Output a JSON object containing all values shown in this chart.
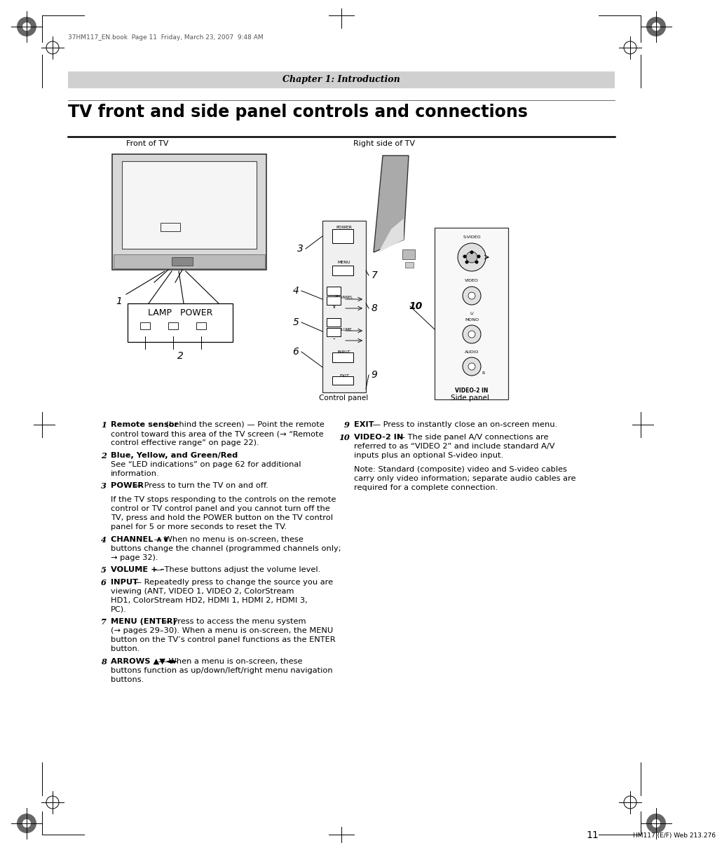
{
  "page_header_text": "37HM117_EN.book  Page 11  Friday, March 23, 2007  9:48 AM",
  "chapter_label": "Chapter 1: Introduction",
  "title": "TV front and side panel controls and connections",
  "front_label": "Front of TV",
  "right_label": "Right side of TV",
  "control_panel_label": "Control panel",
  "side_panel_label": "Side panel",
  "bg_color": "#ffffff",
  "footer_page_num": "11",
  "footer_text": "HM117 (E/F) Web 213.276",
  "items_left": [
    [
      "1",
      "Remote sensor",
      " (behind the screen) — Point the remote\ncontrol toward this area of the TV screen (→ “Remote\ncontrol effective range” on page 22)."
    ],
    [
      "2",
      "Blue, Yellow, and Green/Red",
      "\nSee “LED indications” on page 62 for additional\ninformation."
    ],
    [
      "3",
      "POWER",
      " — Press to turn the TV on and off.\n\nIf the TV stops responding to the controls on the remote\ncontrol or TV control panel and you cannot turn off the\nTV, press and hold the POWER button on the TV control\npanel for 5 or more seconds to reset the TV."
    ],
    [
      "4",
      "CHANNEL ∧∨",
      " — When no menu is on-screen, these\nbuttons change the channel (programmed channels only;\n→ page 32)."
    ],
    [
      "5",
      "VOLUME + –",
      " — These buttons adjust the volume level."
    ],
    [
      "6",
      "INPUT",
      " — Repeatedly press to change the source you are\nviewing (ANT, VIDEO 1, VIDEO 2, ColorStream\nHD1, ColorStream HD2, HDMI 1, HDMI 2, HDMI 3,\nPC)."
    ],
    [
      "7",
      "MENU (ENTER)",
      " — Press to access the menu system\n(→ pages 29–30). When a menu is on-screen, the MENU\nbutton on the TV’s control panel functions as the ENTER\nbutton."
    ],
    [
      "8",
      "ARROWS ▲▼◄►",
      " — When a menu is on-screen, these\nbuttons function as up/down/left/right menu navigation\nbuttons."
    ]
  ],
  "items_right": [
    [
      "9",
      "EXIT",
      " — Press to instantly close an on-screen menu."
    ],
    [
      "10",
      "VIDEO-2 IN",
      " — The side panel A/V connections are\nreferred to as “VIDEO 2” and include standard A/V\ninputs plus an optional S-video input.\n\nNote: Standard (composite) video and S-video cables\ncarry only video information; separate audio cables are\nrequired for a complete connection."
    ]
  ]
}
